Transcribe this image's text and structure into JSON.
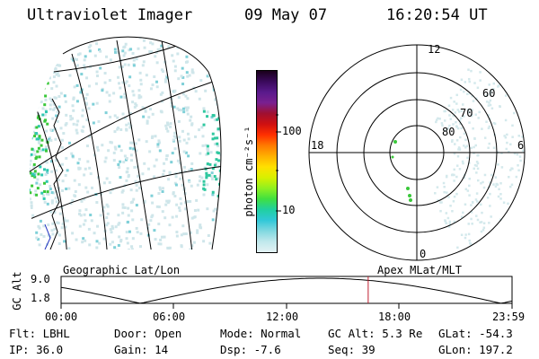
{
  "header": {
    "instrument": "Ultraviolet Imager",
    "date": "09 May 07",
    "time": "16:20:54 UT"
  },
  "colorbar": {
    "unit_label": "photon cm⁻²s⁻¹",
    "tick_labels": [
      "100",
      "10"
    ],
    "colors": [
      "#1a001a",
      "#3a0a5c",
      "#5a1a8c",
      "#7a2090",
      "#a01030",
      "#d01010",
      "#ff3000",
      "#ff7a00",
      "#ffb000",
      "#ffe000",
      "#d8f000",
      "#90f020",
      "#40e040",
      "#20d0a0",
      "#30c8d8",
      "#80d8e0",
      "#c0e8ec",
      "#e4f2f4"
    ]
  },
  "polar_plot": {
    "mlt_labels": [
      "12",
      "18",
      "6",
      "0"
    ],
    "mlat_labels": [
      "60",
      "70",
      "80"
    ]
  },
  "altitude_panel": {
    "ylabel": "GC Alt",
    "ytick_top": "9.0",
    "ytick_bottom": "1.8",
    "left_caption": "Geographic Lat/Lon",
    "right_caption": "Apex MLat/MLT",
    "time_ticks": [
      "00:00",
      "06:00",
      "12:00",
      "18:00",
      "23:59"
    ],
    "current_time_fraction": 0.681
  },
  "info": {
    "flt": "Flt: LBHL",
    "ip": "IP: 36.0",
    "door": "Door: Open",
    "gain": "Gain: 14",
    "mode": "Mode: Normal",
    "dsp": "Dsp:   -7.6",
    "gc_alt": "GC Alt: 5.3 Re",
    "seq": "Seq: 39",
    "glat": "GLat: -54.3",
    "glon": "GLon: 197.2"
  }
}
